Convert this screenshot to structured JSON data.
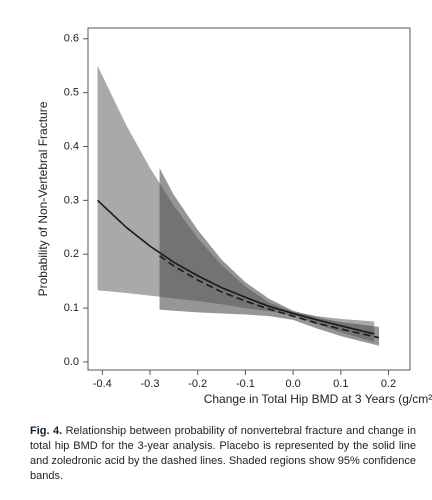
{
  "chart_data": {
    "type": "line",
    "xlabel": "Change in Total Hip BMD at 3 Years (g/cm²)",
    "ylabel": "Probability of Non-Vertebral Fracture",
    "xlim": [
      -0.43,
      0.245
    ],
    "ylim": [
      -0.015,
      0.62
    ],
    "xticks": [
      -0.4,
      -0.3,
      -0.2,
      -0.1,
      {
        "value": 0,
        "label": "0.0"
      },
      0.1,
      0.2
    ],
    "yticks": [
      {
        "value": 0,
        "label": "0.0"
      },
      0.1,
      0.2,
      0.3,
      0.4,
      0.5,
      0.6
    ],
    "series": [
      {
        "style": "solid",
        "color": "#1a1a1a",
        "band_color": "#a9a9a9",
        "x": [
          -0.41,
          -0.35,
          -0.3,
          -0.25,
          -0.2,
          -0.15,
          -0.1,
          -0.05,
          0,
          0.05,
          0.1,
          0.17
        ],
        "values": [
          0.3,
          0.25,
          0.215,
          0.185,
          0.16,
          0.138,
          0.12,
          0.103,
          0.09,
          0.078,
          0.067,
          0.052
        ],
        "upper": [
          0.55,
          0.44,
          0.36,
          0.29,
          0.23,
          0.18,
          0.14,
          0.11,
          0.093,
          0.085,
          0.08,
          0.075
        ],
        "lower": [
          0.133,
          0.128,
          0.123,
          0.118,
          0.113,
          0.107,
          0.1,
          0.094,
          0.087,
          0.07,
          0.055,
          0.037
        ]
      },
      {
        "style": "dashed",
        "color": "#1a1a1a",
        "band_color": "#505050",
        "x": [
          -0.28,
          -0.25,
          -0.2,
          -0.15,
          -0.1,
          -0.05,
          0,
          0.05,
          0.1,
          0.18
        ],
        "values": [
          0.197,
          0.178,
          0.152,
          0.13,
          0.113,
          0.098,
          0.085,
          0.072,
          0.061,
          0.045
        ],
        "upper": [
          0.36,
          0.31,
          0.245,
          0.19,
          0.148,
          0.117,
          0.095,
          0.083,
          0.074,
          0.065
        ],
        "lower": [
          0.097,
          0.095,
          0.092,
          0.09,
          0.088,
          0.085,
          0.078,
          0.062,
          0.048,
          0.03
        ]
      }
    ]
  },
  "caption": {
    "label": "Fig. 4.",
    "text": "Relationship between probability of nonvertebral fracture and change in total hip BMD for the 3-year analysis. Placebo is represented by the solid line and zoledronic acid by the dashed lines. Shaded regions show 95% confidence bands."
  }
}
